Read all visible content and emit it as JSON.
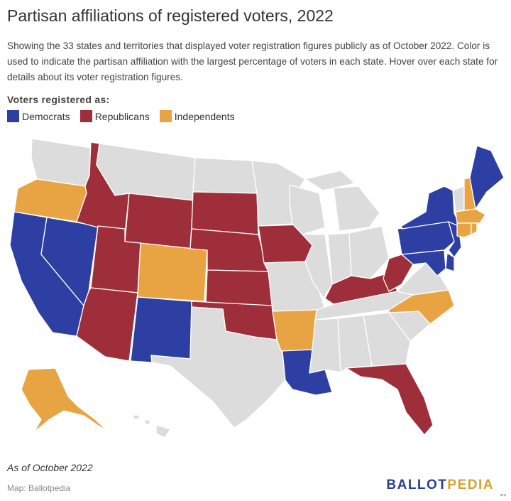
{
  "title": "Partisan affiliations of registered voters, 2022",
  "subtitle": "Showing the 33 states and territories that displayed voter registration figures publicly as of October 2022. Color is used to indicate the partisan affiliation with the largest percentage of voters in each state. Hover over each state for details about its voter registration figures.",
  "legend": {
    "title": "Voters registered as:",
    "items": [
      {
        "label": "Democrats",
        "color": "#2e3fa3"
      },
      {
        "label": "Republicans",
        "color": "#9e2f3a"
      },
      {
        "label": "Independents",
        "color": "#e8a443"
      }
    ]
  },
  "colors": {
    "none": "#dcdcdc",
    "border": "#ffffff"
  },
  "states": {
    "WA": "none",
    "OR": "Independents",
    "CA": "Democrats",
    "NV": "Democrats",
    "ID": "Republicans",
    "MT": "none",
    "WY": "Republicans",
    "UT": "Republicans",
    "AZ": "Republicans",
    "CO": "Independents",
    "NM": "Democrats",
    "ND": "none",
    "SD": "Republicans",
    "NE": "Republicans",
    "KS": "Republicans",
    "OK": "Republicans",
    "TX": "none",
    "MN": "none",
    "IA": "Republicans",
    "MO": "none",
    "AR": "Independents",
    "LA": "Democrats",
    "WI": "none",
    "IL": "none",
    "MI": "none",
    "IN": "none",
    "OH": "none",
    "KY": "Republicans",
    "TN": "none",
    "MS": "none",
    "AL": "none",
    "GA": "none",
    "FL": "Republicans",
    "SC": "none",
    "NC": "Independents",
    "VA": "none",
    "WV": "Republicans",
    "PA": "Democrats",
    "NY": "Democrats",
    "NJ": "Democrats",
    "DE": "Democrats",
    "MD": "Democrats",
    "DC": "Democrats",
    "CT": "Independents",
    "RI": "Independents",
    "MA": "Independents",
    "VT": "none",
    "NH": "Independents",
    "ME": "Democrats",
    "AK": "Independents",
    "HI": "none"
  },
  "note": "As of October 2022",
  "source": "Map: Ballotpedia",
  "logo": {
    "part1": "BALLOT",
    "part2": "PEDIA"
  },
  "expand_icon": "expand-arrows-icon"
}
